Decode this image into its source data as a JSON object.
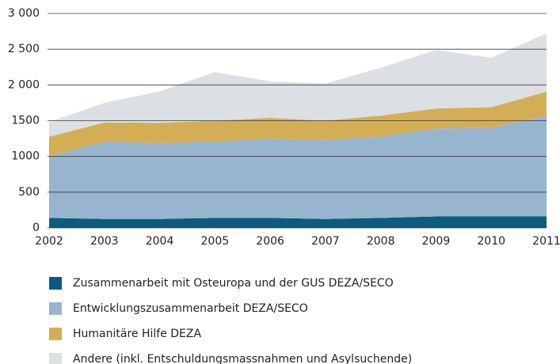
{
  "chart_data": {
    "type": "stacked_area",
    "x": [
      2002,
      2003,
      2004,
      2005,
      2006,
      2007,
      2008,
      2009,
      2010,
      2011
    ],
    "xlim": [
      2002,
      2011
    ],
    "xticks": [
      2002,
      2003,
      2004,
      2005,
      2006,
      2007,
      2008,
      2009,
      2010,
      2011
    ],
    "ylim": [
      0,
      3000
    ],
    "yticks": [
      0,
      500,
      1000,
      1500,
      {
        "value": 2000,
        "label": "2 000"
      },
      {
        "value": 2500,
        "label": "2 500"
      },
      {
        "value": 3000,
        "label": "3 000"
      }
    ],
    "grid": true,
    "legend": "bottom",
    "series": [
      {
        "name": "Zusammenarbeit mit Osteuropa und der GUS DEZA/SECO",
        "color": "#0d5b7e",
        "values": [
          140,
          125,
          125,
          140,
          140,
          125,
          140,
          160,
          160,
          160
        ]
      },
      {
        "name": "Entwicklungszusammenarbeit DEZA/SECO",
        "color": "#98b5cf",
        "values": [
          860,
          1085,
          1065,
          1070,
          1110,
          1105,
          1140,
          1230,
          1240,
          1410
        ]
      },
      {
        "name": "Humanitäre Hilfe DEZA",
        "color": "#d4ae55",
        "values": [
          275,
          265,
          280,
          290,
          290,
          270,
          290,
          280,
          290,
          335
        ]
      },
      {
        "name": "Andere (inkl. Entschuldungsmassnahmen und Asylsuchende)",
        "color": "#dcdfe3",
        "values": [
          205,
          275,
          440,
          680,
          510,
          520,
          670,
          820,
          690,
          815
        ]
      }
    ]
  }
}
